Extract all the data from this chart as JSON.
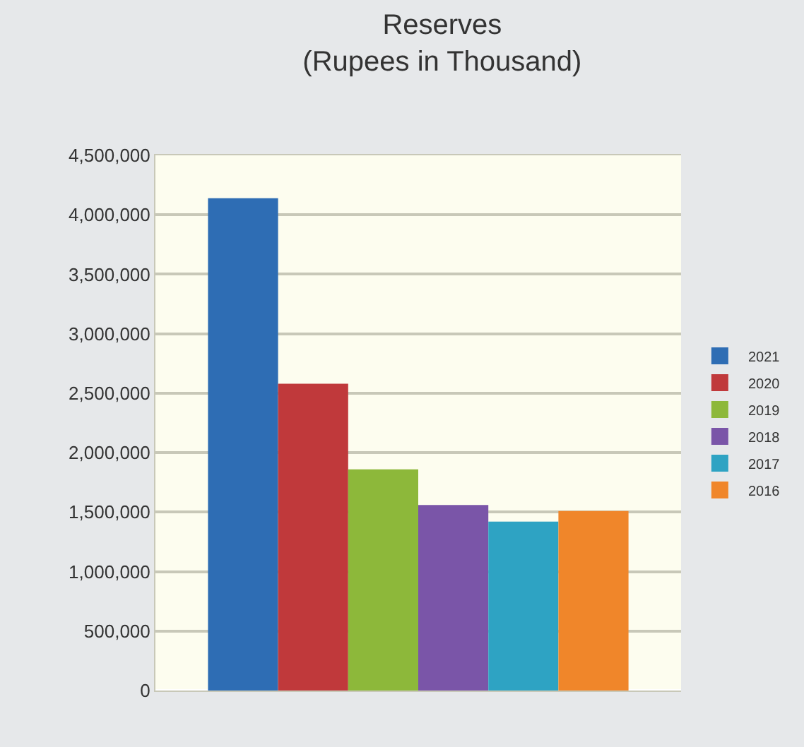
{
  "chart_data": {
    "type": "bar",
    "title": "Reserves\n(Rupees in Thousand)",
    "categories": [
      null
    ],
    "series": [
      {
        "name": "2021",
        "color": "#2e6db4",
        "values": [
          4140000
        ]
      },
      {
        "name": "2020",
        "color": "#c0393b",
        "values": [
          2580000
        ]
      },
      {
        "name": "2019",
        "color": "#8db83a",
        "values": [
          1860000
        ]
      },
      {
        "name": "2018",
        "color": "#7a55a8",
        "values": [
          1560000
        ]
      },
      {
        "name": "2017",
        "color": "#2ea3c3",
        "values": [
          1420000
        ]
      },
      {
        "name": "2016",
        "color": "#f0862a",
        "values": [
          1510000
        ]
      }
    ],
    "ylim": [
      0,
      4500000
    ],
    "yticks": [
      {
        "value": 0,
        "label": "0"
      },
      {
        "value": 500000,
        "label": "500,000"
      },
      {
        "value": 1000000,
        "label": "1,000,000"
      },
      {
        "value": 1500000,
        "label": "1,500,000"
      },
      {
        "value": 2000000,
        "label": "2,000,000"
      },
      {
        "value": 2500000,
        "label": "2,500,000"
      },
      {
        "value": 3000000,
        "label": "3,000,000"
      },
      {
        "value": 3500000,
        "label": "3,500,000"
      },
      {
        "value": 4000000,
        "label": "4,000,000"
      },
      {
        "value": 4500000,
        "label": "4,500,000"
      }
    ],
    "grid": "y",
    "legend": "right",
    "tick_labels": "y"
  }
}
